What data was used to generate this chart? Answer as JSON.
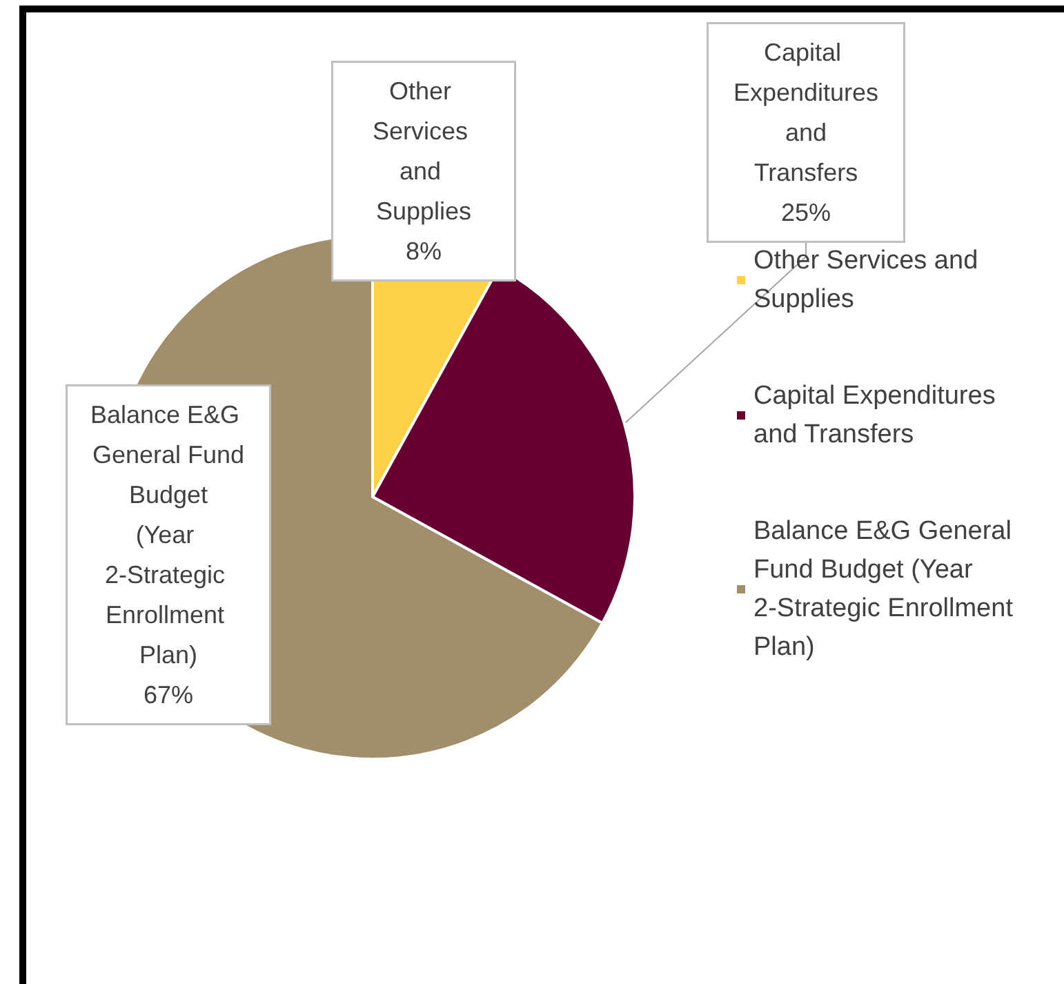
{
  "chart_data": {
    "type": "pie",
    "categories": [
      "Other Services and Supplies",
      "Capital Expenditures and Transfers",
      "Balance E&G General Fund Budget (Year 2-Strategic Enrollment Plan)"
    ],
    "values": [
      8,
      25,
      67
    ],
    "value_labels": [
      "8%",
      "25%",
      "67%"
    ],
    "colors": [
      "#ffd147",
      "#660033",
      "#a28e6a"
    ],
    "legend": "right"
  }
}
